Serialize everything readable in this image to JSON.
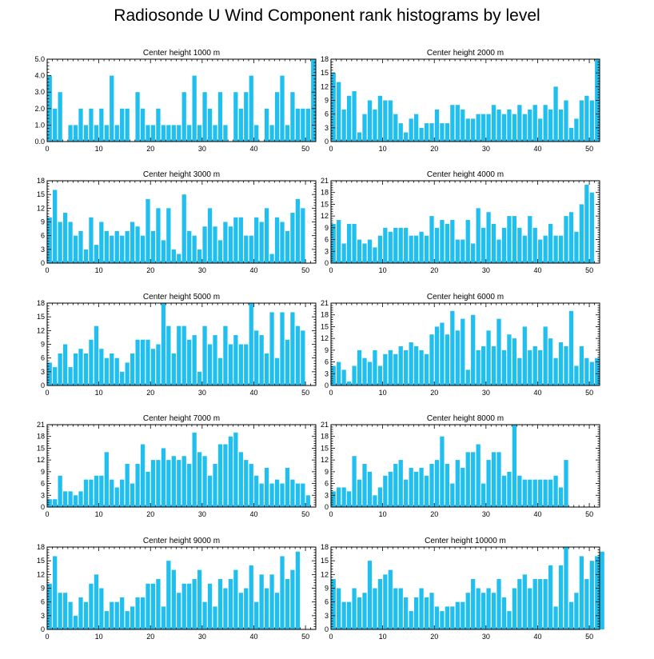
{
  "title": "Radiosonde U Wind Component rank histograms by level",
  "colors": {
    "bar": "#1fbfef",
    "bar_edge": "#ffffff",
    "axis": "#000000"
  },
  "chart_data": [
    {
      "type": "bar",
      "subtitle": "Center height 1000 m",
      "xlim": [
        0,
        52
      ],
      "ylim": [
        0,
        5
      ],
      "xticks": [
        0,
        10,
        20,
        30,
        40,
        50
      ],
      "yticks": [
        0,
        1,
        2,
        3,
        4,
        5
      ],
      "ytick_labels": [
        "0.0",
        "1.0",
        "2.0",
        "3.0",
        "4.0",
        "5.0"
      ],
      "values": [
        4,
        2,
        3,
        0,
        1,
        1,
        2,
        1,
        2,
        1,
        2,
        1,
        4,
        1,
        2,
        2,
        0,
        3,
        2,
        1,
        1,
        2,
        1,
        1,
        1,
        1,
        3,
        1,
        4,
        1,
        3,
        2,
        1,
        3,
        1,
        0,
        3,
        2,
        3,
        4,
        1,
        0,
        2,
        1,
        3,
        4,
        1,
        3,
        2,
        2,
        2,
        5
      ]
    },
    {
      "type": "bar",
      "subtitle": "Center height 2000 m",
      "xlim": [
        0,
        52
      ],
      "ylim": [
        0,
        18
      ],
      "xticks": [
        0,
        10,
        20,
        30,
        40,
        50
      ],
      "yticks": [
        0,
        3,
        6,
        9,
        12,
        15,
        18
      ],
      "ytick_labels": [
        "0",
        "3",
        "6",
        "9",
        "12",
        "15",
        "18"
      ],
      "values": [
        15,
        13,
        7,
        10,
        11,
        2,
        6,
        9,
        7,
        10,
        9,
        9,
        6,
        4,
        2,
        5,
        6,
        3,
        4,
        4,
        7,
        4,
        4,
        8,
        8,
        7,
        5,
        5,
        6,
        6,
        6,
        8,
        7,
        6,
        7,
        6,
        8,
        6,
        7,
        8,
        5,
        8,
        7,
        12,
        7,
        9,
        3,
        5,
        9,
        10,
        9,
        18
      ]
    },
    {
      "type": "bar",
      "subtitle": "Center height 3000 m",
      "xlim": [
        0,
        52
      ],
      "ylim": [
        0,
        18
      ],
      "xticks": [
        0,
        10,
        20,
        30,
        40,
        50
      ],
      "yticks": [
        0,
        3,
        6,
        9,
        12,
        15,
        18
      ],
      "ytick_labels": [
        "0",
        "3",
        "6",
        "9",
        "12",
        "15",
        "18"
      ],
      "values": [
        10,
        16,
        9,
        11,
        9,
        6,
        7,
        3,
        10,
        4,
        9,
        7,
        6,
        7,
        6,
        7,
        9,
        8,
        6,
        14,
        7,
        12,
        5,
        12,
        3,
        2,
        15,
        7,
        6,
        3,
        8,
        12,
        8,
        5,
        9,
        8,
        10,
        10,
        6,
        6,
        10,
        9,
        12,
        2,
        10,
        9,
        7,
        11,
        14,
        12,
        0,
        0
      ]
    },
    {
      "type": "bar",
      "subtitle": "Center height 4000 m",
      "xlim": [
        0,
        52
      ],
      "ylim": [
        0,
        21
      ],
      "xticks": [
        0,
        10,
        20,
        30,
        40,
        50
      ],
      "yticks": [
        0,
        3,
        6,
        9,
        12,
        15,
        18,
        21
      ],
      "ytick_labels": [
        "0",
        "3",
        "6",
        "9",
        "12",
        "15",
        "18",
        "21"
      ],
      "values": [
        10,
        11,
        5,
        10,
        10,
        6,
        5,
        6,
        4,
        7,
        9,
        8,
        9,
        9,
        9,
        7,
        7,
        8,
        7,
        12,
        9,
        11,
        10,
        11,
        6,
        6,
        11,
        5,
        14,
        9,
        13,
        10,
        6,
        9,
        12,
        12,
        9,
        7,
        12,
        9,
        6,
        7,
        10,
        7,
        7,
        12,
        13,
        8,
        15,
        20,
        18,
        0
      ]
    },
    {
      "type": "bar",
      "subtitle": "Center height 5000 m",
      "xlim": [
        0,
        52
      ],
      "ylim": [
        0,
        18
      ],
      "xticks": [
        0,
        10,
        20,
        30,
        40,
        50
      ],
      "yticks": [
        0,
        3,
        6,
        9,
        12,
        15,
        18
      ],
      "ytick_labels": [
        "0",
        "3",
        "6",
        "9",
        "12",
        "15",
        "18"
      ],
      "values": [
        5,
        4,
        7,
        9,
        4,
        7,
        8,
        7,
        10,
        13,
        8,
        6,
        7,
        6,
        3,
        5,
        7,
        10,
        10,
        10,
        8,
        9,
        18,
        13,
        7,
        13,
        13,
        10,
        11,
        3,
        13,
        9,
        11,
        6,
        13,
        9,
        11,
        9,
        9,
        18,
        12,
        11,
        7,
        16,
        6,
        16,
        10,
        16,
        13,
        12,
        0,
        0
      ]
    },
    {
      "type": "bar",
      "subtitle": "Center height 6000 m",
      "xlim": [
        0,
        52
      ],
      "ylim": [
        0,
        21
      ],
      "xticks": [
        0,
        10,
        20,
        30,
        40,
        50
      ],
      "yticks": [
        0,
        3,
        6,
        9,
        12,
        15,
        18,
        21
      ],
      "ytick_labels": [
        "0",
        "3",
        "6",
        "9",
        "12",
        "15",
        "18",
        "21"
      ],
      "values": [
        5,
        6,
        4,
        1,
        5,
        9,
        7,
        6,
        9,
        5,
        8,
        9,
        8,
        10,
        9,
        11,
        10,
        9,
        8,
        13,
        15,
        16,
        13,
        19,
        14,
        17,
        4,
        18,
        9,
        10,
        14,
        10,
        17,
        9,
        13,
        12,
        7,
        15,
        9,
        10,
        9,
        15,
        12,
        7,
        11,
        10,
        19,
        5,
        10,
        7,
        6,
        7
      ]
    },
    {
      "type": "bar",
      "subtitle": "Center height 7000 m",
      "xlim": [
        0,
        52
      ],
      "ylim": [
        0,
        21
      ],
      "xticks": [
        0,
        10,
        20,
        30,
        40,
        50
      ],
      "yticks": [
        0,
        3,
        6,
        9,
        12,
        15,
        18,
        21
      ],
      "ytick_labels": [
        "0",
        "3",
        "6",
        "9",
        "12",
        "15",
        "18",
        "21"
      ],
      "values": [
        2,
        2,
        8,
        4,
        4,
        3,
        4,
        7,
        7,
        8,
        8,
        14,
        7,
        5,
        7,
        11,
        6,
        11,
        16,
        9,
        12,
        12,
        15,
        12,
        13,
        12,
        13,
        11,
        19,
        14,
        13,
        8,
        11,
        16,
        16,
        18,
        19,
        14,
        12,
        11,
        8,
        6,
        10,
        6,
        7,
        6,
        10,
        7,
        6,
        6,
        3,
        0
      ]
    },
    {
      "type": "bar",
      "subtitle": "Center height 8000 m",
      "xlim": [
        0,
        52
      ],
      "ylim": [
        0,
        21
      ],
      "xticks": [
        0,
        10,
        20,
        30,
        40,
        50
      ],
      "yticks": [
        0,
        3,
        6,
        9,
        12,
        15,
        18,
        21
      ],
      "ytick_labels": [
        "0",
        "3",
        "6",
        "9",
        "12",
        "15",
        "18",
        "21"
      ],
      "values": [
        4,
        5,
        5,
        4,
        13,
        7,
        11,
        9,
        3,
        5,
        8,
        9,
        11,
        12,
        7,
        10,
        9,
        10,
        8,
        11,
        12,
        18,
        11,
        6,
        12,
        10,
        14,
        14,
        16,
        6,
        12,
        14,
        14,
        8,
        9,
        21,
        8,
        7,
        7,
        7,
        7,
        7,
        7,
        8,
        5,
        12,
        0,
        0,
        0,
        0,
        0,
        0
      ]
    },
    {
      "type": "bar",
      "subtitle": "Center height 9000 m",
      "xlim": [
        0,
        52
      ],
      "ylim": [
        0,
        18
      ],
      "xticks": [
        0,
        10,
        20,
        30,
        40,
        50
      ],
      "yticks": [
        0,
        3,
        6,
        9,
        12,
        15,
        18
      ],
      "ytick_labels": [
        "0",
        "3",
        "6",
        "9",
        "12",
        "15",
        "18"
      ],
      "values": [
        10,
        16,
        8,
        8,
        6,
        3,
        7,
        6,
        10,
        12,
        9,
        4,
        6,
        6,
        7,
        4,
        5,
        7,
        7,
        10,
        10,
        11,
        5,
        15,
        13,
        8,
        10,
        10,
        11,
        13,
        6,
        10,
        5,
        11,
        9,
        11,
        13,
        8,
        9,
        14,
        6,
        12,
        9,
        12,
        8,
        16,
        11,
        13,
        17,
        0,
        0,
        0
      ]
    },
    {
      "type": "bar",
      "subtitle": "Center height 10000 m",
      "xlim": [
        0,
        52
      ],
      "ylim": [
        0,
        18
      ],
      "xticks": [
        0,
        10,
        20,
        30,
        40,
        50
      ],
      "yticks": [
        0,
        3,
        6,
        9,
        12,
        15,
        18
      ],
      "ytick_labels": [
        "0",
        "3",
        "6",
        "9",
        "12",
        "15",
        "18"
      ],
      "values": [
        11,
        9,
        6,
        6,
        9,
        7,
        8,
        15,
        9,
        11,
        12,
        13,
        9,
        9,
        7,
        4,
        7,
        9,
        7,
        8,
        5,
        4,
        5,
        5,
        6,
        6,
        8,
        11,
        9,
        8,
        9,
        8,
        11,
        7,
        4,
        9,
        11,
        12,
        9,
        11,
        11,
        11,
        14,
        5,
        14,
        18,
        6,
        8,
        16,
        11,
        15,
        16,
        17
      ]
    }
  ]
}
